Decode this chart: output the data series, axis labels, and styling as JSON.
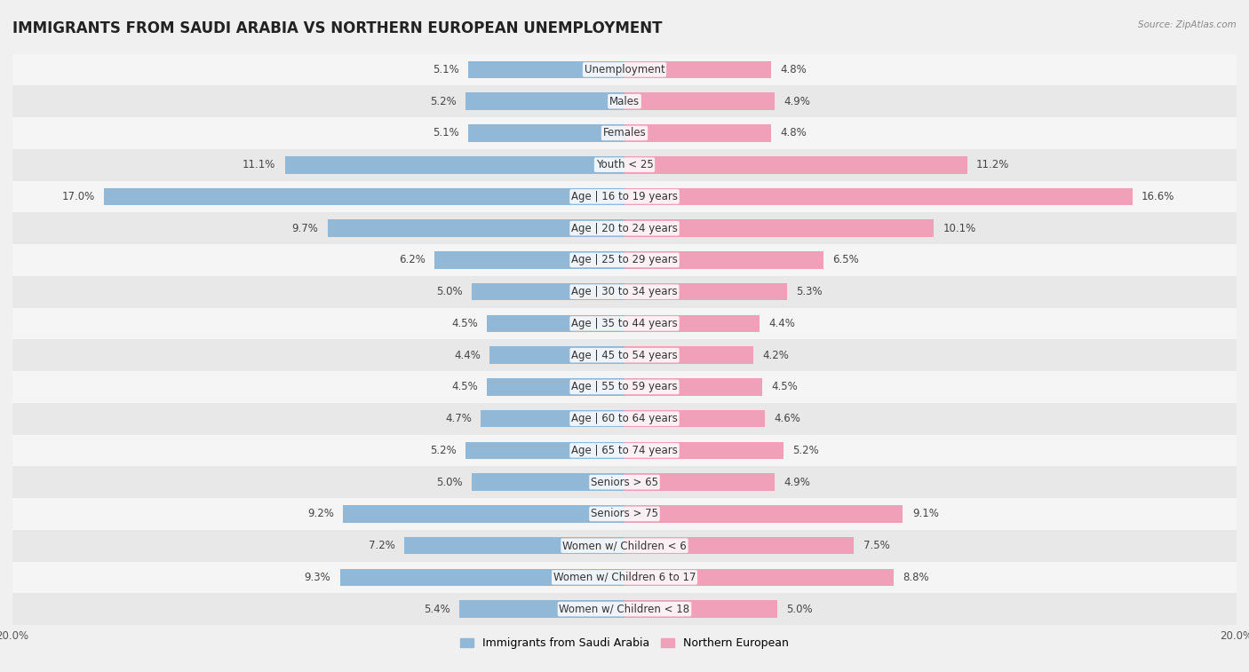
{
  "title": "IMMIGRANTS FROM SAUDI ARABIA VS NORTHERN EUROPEAN UNEMPLOYMENT",
  "source": "Source: ZipAtlas.com",
  "categories": [
    "Unemployment",
    "Males",
    "Females",
    "Youth < 25",
    "Age | 16 to 19 years",
    "Age | 20 to 24 years",
    "Age | 25 to 29 years",
    "Age | 30 to 34 years",
    "Age | 35 to 44 years",
    "Age | 45 to 54 years",
    "Age | 55 to 59 years",
    "Age | 60 to 64 years",
    "Age | 65 to 74 years",
    "Seniors > 65",
    "Seniors > 75",
    "Women w/ Children < 6",
    "Women w/ Children 6 to 17",
    "Women w/ Children < 18"
  ],
  "left_values": [
    5.1,
    5.2,
    5.1,
    11.1,
    17.0,
    9.7,
    6.2,
    5.0,
    4.5,
    4.4,
    4.5,
    4.7,
    5.2,
    5.0,
    9.2,
    7.2,
    9.3,
    5.4
  ],
  "right_values": [
    4.8,
    4.9,
    4.8,
    11.2,
    16.6,
    10.1,
    6.5,
    5.3,
    4.4,
    4.2,
    4.5,
    4.6,
    5.2,
    4.9,
    9.1,
    7.5,
    8.8,
    5.0
  ],
  "left_color": "#92b8d8",
  "right_color": "#f0a0b8",
  "row_color_even": "#f5f5f5",
  "row_color_odd": "#e8e8e8",
  "background_color": "#f0f0f0",
  "axis_max": 20.0,
  "title_fontsize": 12,
  "label_fontsize": 8.5,
  "value_fontsize": 8.5
}
